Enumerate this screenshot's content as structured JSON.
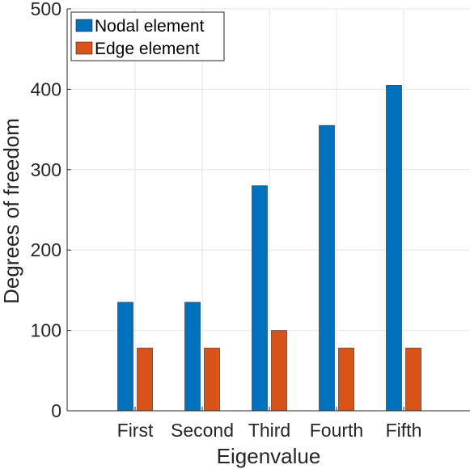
{
  "chart_data": {
    "type": "bar",
    "title": "",
    "xlabel": "Eigenvalue",
    "ylabel": "Degrees of freedom",
    "categories": [
      "First",
      "Second",
      "Third",
      "Fourth",
      "Fifth"
    ],
    "series": [
      {
        "name": "Nodal element",
        "color": "#0072BD",
        "values": [
          135,
          135,
          280,
          355,
          405
        ]
      },
      {
        "name": "Edge element",
        "color": "#D95319",
        "values": [
          78,
          78,
          100,
          78,
          78
        ]
      }
    ],
    "ylim": [
      0,
      500
    ],
    "yticks": [
      0,
      100,
      200,
      300,
      400,
      500
    ],
    "grid": true,
    "legend_position": "top-left"
  }
}
